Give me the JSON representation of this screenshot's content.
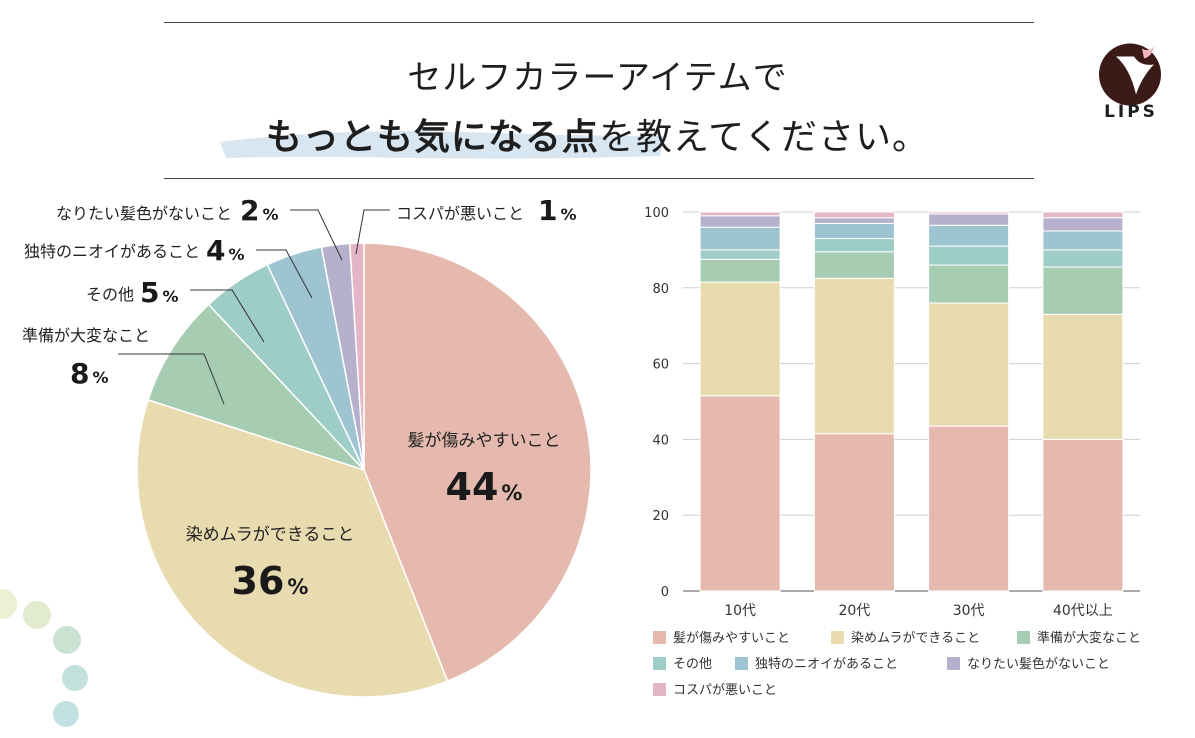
{
  "title_line1": "セルフカラーアイテムで",
  "title_line2_bold": "もっとも気になる点",
  "title_line2_rest": "を教えてください。",
  "logo": {
    "text": "LIPS",
    "color": "#3a1a16"
  },
  "colors": {
    "hair_damage": "#e5b9ae",
    "uneven": "#e8dbb0",
    "hard": "#a6cdb2",
    "other": "#9ecdc8",
    "smell": "#9ec3d1",
    "color_mismatch": "#b6b0cc",
    "cost": "#e3b5c6"
  },
  "chart_data": [
    {
      "type": "pie",
      "title": "",
      "slices": [
        {
          "key": "hair_damage",
          "label": "髪が傷みやすいこと",
          "value": 44,
          "pct": "44",
          "unit": "%"
        },
        {
          "key": "uneven",
          "label": "染めムラができること",
          "value": 36,
          "pct": "36",
          "unit": "%"
        },
        {
          "key": "hard",
          "label": "準備が大変なこと",
          "value": 8,
          "pct": "8",
          "unit": "%"
        },
        {
          "key": "other",
          "label": "その他",
          "value": 5,
          "pct": "5",
          "unit": "%"
        },
        {
          "key": "smell",
          "label": "独特のニオイがあること",
          "value": 4,
          "pct": "4",
          "unit": "%"
        },
        {
          "key": "color_mismatch",
          "label": "なりたい髪色がないこと",
          "value": 2,
          "pct": "2",
          "unit": "%"
        },
        {
          "key": "cost",
          "label": "コスパが悪いこと",
          "value": 1,
          "pct": "1",
          "unit": "%"
        }
      ]
    },
    {
      "type": "bar",
      "stacked": true,
      "categories": [
        "10代",
        "20代",
        "30代",
        "40代以上"
      ],
      "ylim": [
        0,
        100
      ],
      "yticks": [
        "0",
        "20",
        "40",
        "60",
        "80",
        "100"
      ],
      "grid": true,
      "legend_position": "bottom",
      "series": [
        {
          "key": "hair_damage",
          "name": "髪が傷みやすいこと",
          "values": [
            51.5,
            41.5,
            43.5,
            40
          ]
        },
        {
          "key": "uneven",
          "name": "染めムラができること",
          "values": [
            30,
            41,
            32.5,
            33
          ]
        },
        {
          "key": "hard",
          "name": "準備が大変なこと",
          "values": [
            6,
            7,
            10,
            12.5
          ]
        },
        {
          "key": "other",
          "name": "その他",
          "values": [
            2.5,
            3.5,
            5,
            4.5
          ]
        },
        {
          "key": "smell",
          "name": "独特のニオイがあること",
          "values": [
            6,
            4,
            5.5,
            5
          ]
        },
        {
          "key": "color_mismatch",
          "name": "なりたい髪色がないこと",
          "values": [
            3,
            1.5,
            3,
            3.5
          ]
        },
        {
          "key": "cost",
          "name": "コスパが悪いこと",
          "values": [
            1,
            1.5,
            0.5,
            1.5
          ]
        }
      ]
    }
  ]
}
